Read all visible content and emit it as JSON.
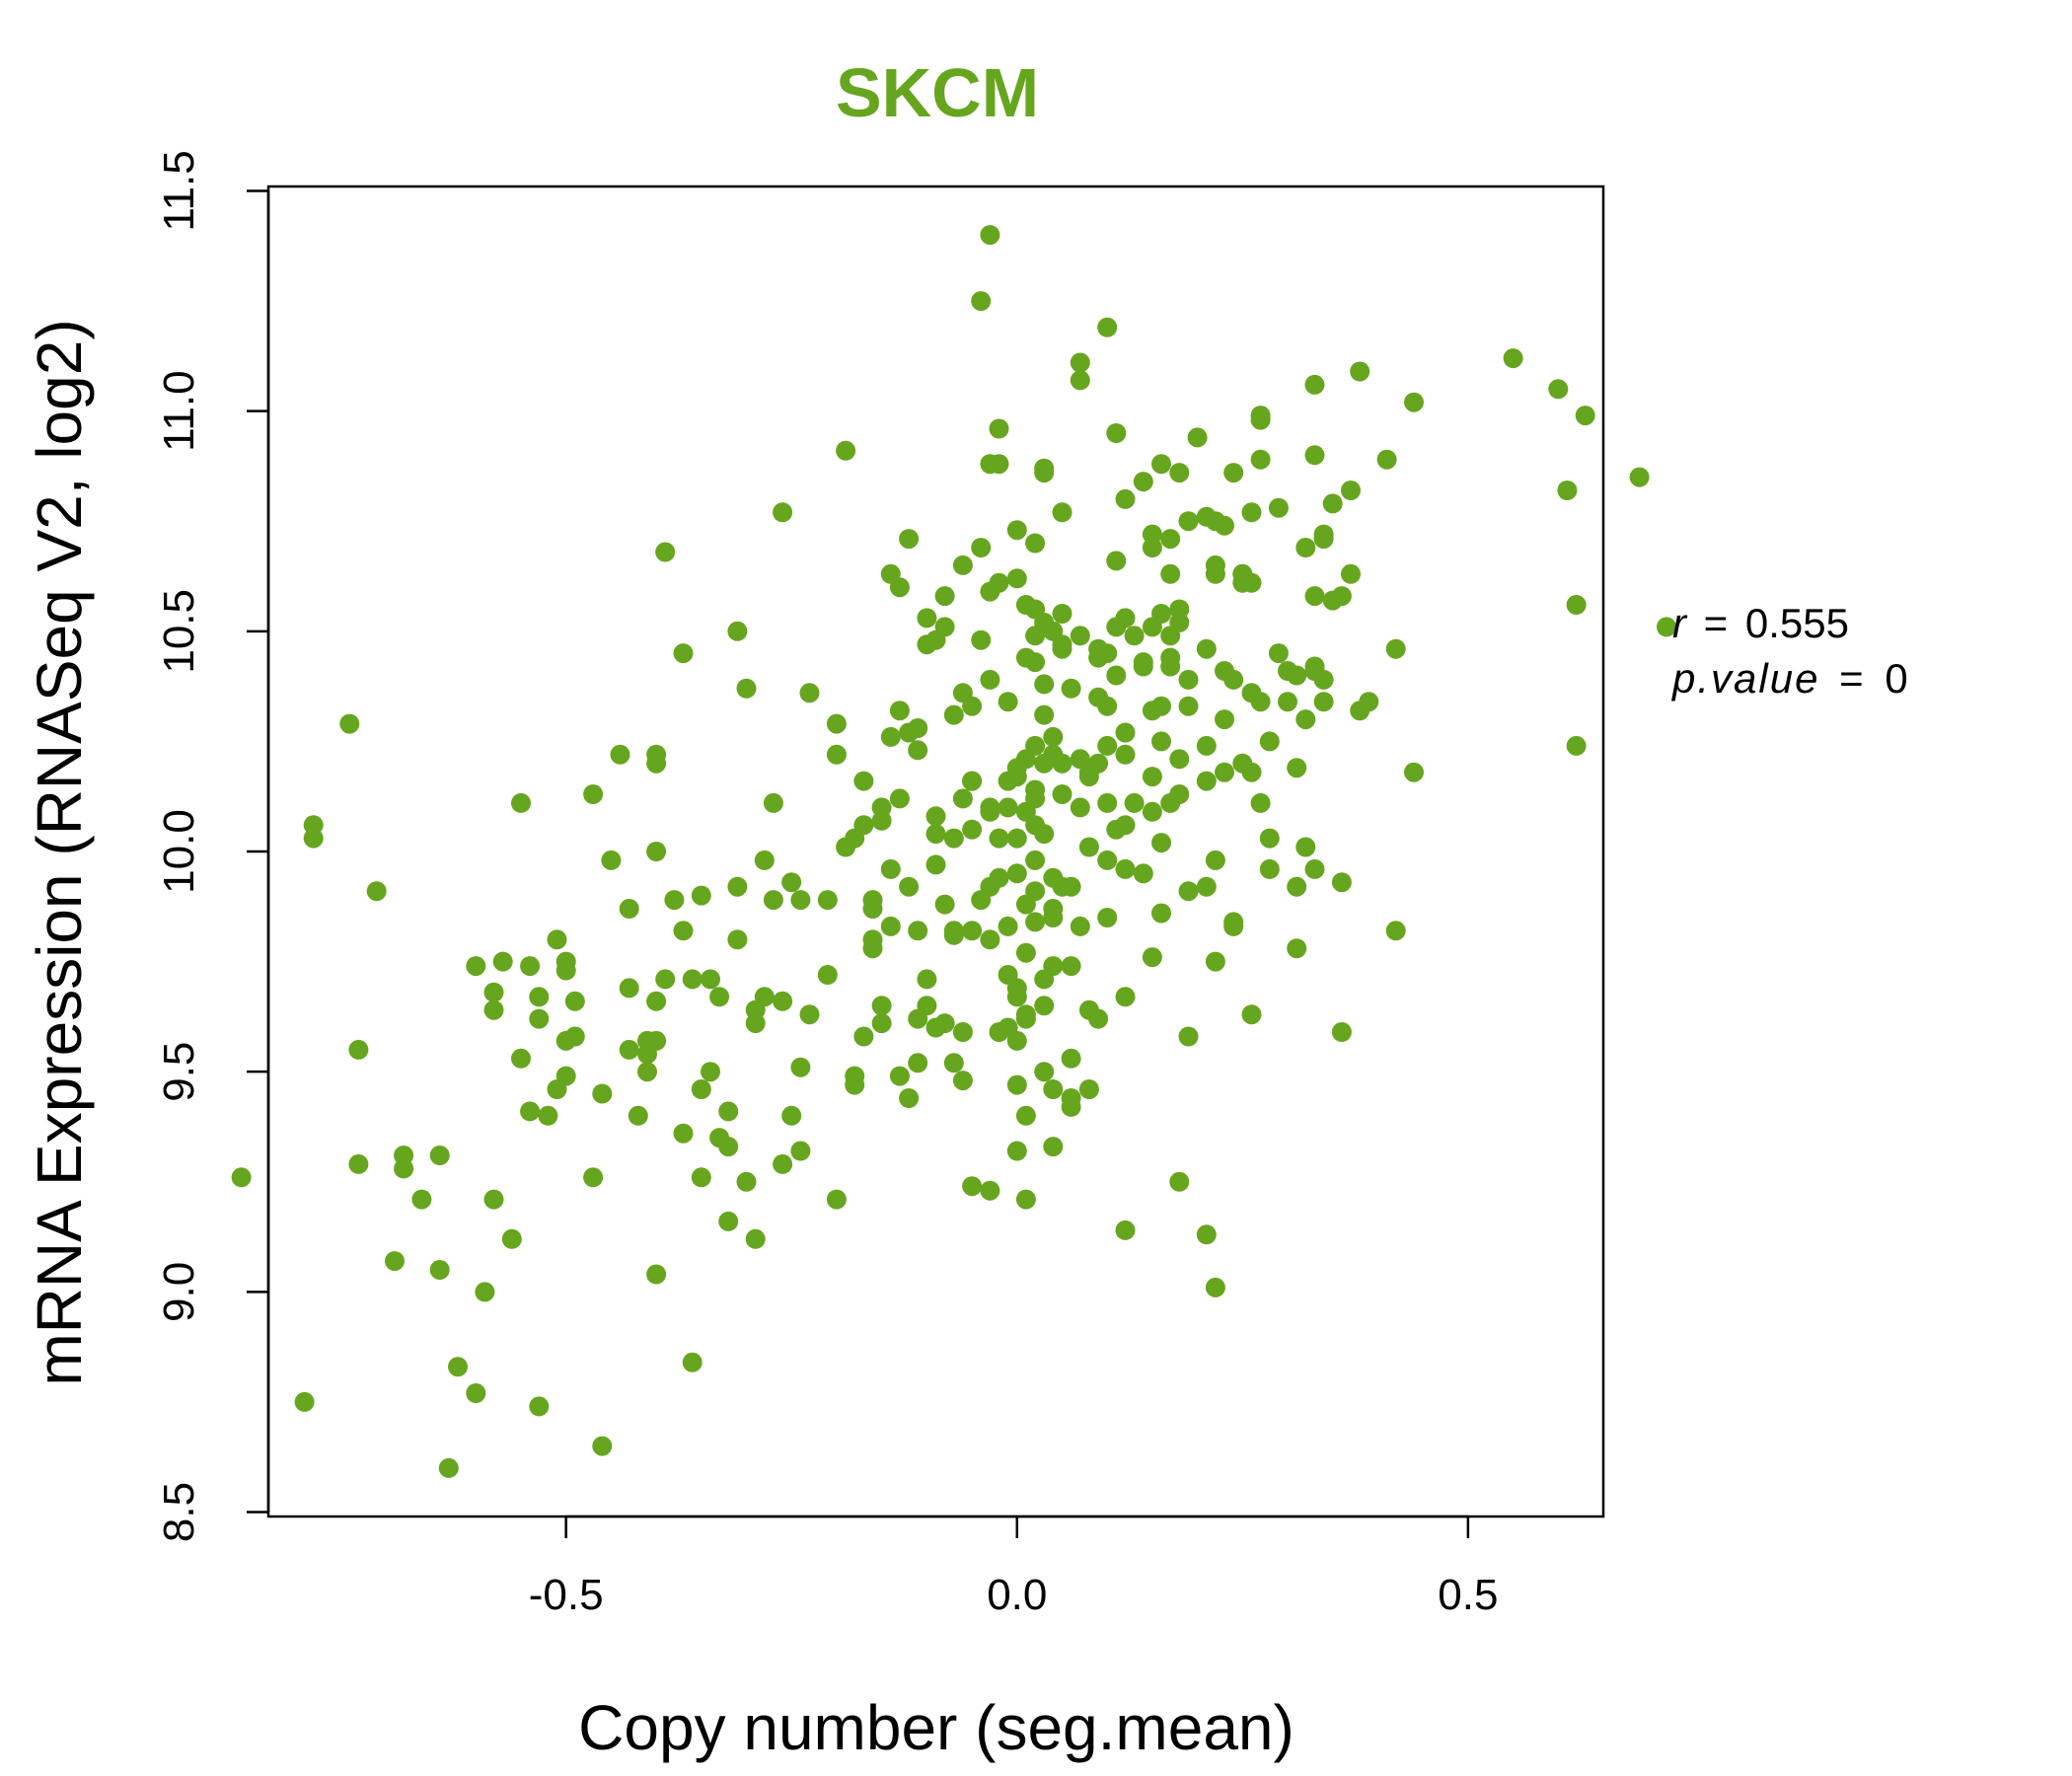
{
  "chart_data": {
    "type": "scatter",
    "title": "SKCM",
    "xlabel": "Copy number (seg.mean)",
    "ylabel": "mRNA Expression (RNASeq V2, log2)",
    "xlim": [
      -0.83,
      0.65
    ],
    "ylim": [
      8.49,
      11.51
    ],
    "x_ticks": [
      -0.5,
      0.0,
      0.5
    ],
    "x_tick_labels": [
      "-0.5",
      "0.0",
      "0.5"
    ],
    "y_ticks": [
      8.5,
      9.0,
      9.5,
      10.0,
      10.5,
      11.0,
      11.5
    ],
    "y_tick_labels": [
      "8.5",
      "9.0",
      "9.5",
      "10.0",
      "10.5",
      "11.0",
      "11.5"
    ],
    "grid": false,
    "colors": {
      "points": "#66A61E",
      "title": "#66A61E",
      "axis": "#000000"
    },
    "stats": {
      "r_label": "r",
      "r_value": "0.555",
      "p_label": "p.value",
      "p_value": "0"
    },
    "points": [
      [
        -0.86,
        9.26
      ],
      [
        -0.79,
        8.75
      ],
      [
        -0.78,
        10.06
      ],
      [
        -0.78,
        10.03
      ],
      [
        -0.74,
        10.29
      ],
      [
        -0.73,
        9.55
      ],
      [
        -0.73,
        9.29
      ],
      [
        -0.71,
        9.91
      ],
      [
        -0.69,
        9.07
      ],
      [
        -0.68,
        9.31
      ],
      [
        -0.68,
        9.28
      ],
      [
        -0.66,
        9.21
      ],
      [
        -0.64,
        9.31
      ],
      [
        -0.64,
        9.05
      ],
      [
        -0.63,
        8.6
      ],
      [
        -0.62,
        8.83
      ],
      [
        -0.6,
        8.77
      ],
      [
        -0.6,
        9.74
      ],
      [
        -0.59,
        9.0
      ],
      [
        -0.58,
        9.68
      ],
      [
        -0.58,
        9.64
      ],
      [
        -0.58,
        9.21
      ],
      [
        -0.57,
        9.75
      ],
      [
        -0.56,
        9.12
      ],
      [
        -0.55,
        10.11
      ],
      [
        -0.55,
        9.53
      ],
      [
        -0.54,
        9.41
      ],
      [
        -0.54,
        9.74
      ],
      [
        -0.53,
        9.62
      ],
      [
        -0.53,
        9.67
      ],
      [
        -0.53,
        8.74
      ],
      [
        -0.52,
        9.4
      ],
      [
        -0.51,
        9.8
      ],
      [
        -0.51,
        9.46
      ],
      [
        -0.5,
        9.75
      ],
      [
        -0.5,
        9.73
      ],
      [
        -0.5,
        9.57
      ],
      [
        -0.5,
        9.49
      ],
      [
        -0.49,
        9.58
      ],
      [
        -0.49,
        9.66
      ],
      [
        -0.47,
        10.13
      ],
      [
        -0.47,
        9.26
      ],
      [
        -0.46,
        8.65
      ],
      [
        -0.46,
        9.45
      ],
      [
        -0.45,
        9.98
      ],
      [
        -0.44,
        10.22
      ],
      [
        -0.43,
        9.69
      ],
      [
        -0.43,
        9.87
      ],
      [
        -0.43,
        9.55
      ],
      [
        -0.42,
        9.4
      ],
      [
        -0.41,
        9.54
      ],
      [
        -0.41,
        9.57
      ],
      [
        -0.41,
        9.5
      ],
      [
        -0.4,
        9.66
      ],
      [
        -0.4,
        9.57
      ],
      [
        -0.4,
        10.2
      ],
      [
        -0.4,
        10.22
      ],
      [
        -0.4,
        9.04
      ],
      [
        -0.4,
        10.0
      ],
      [
        -0.39,
        10.68
      ],
      [
        -0.39,
        9.71
      ],
      [
        -0.38,
        9.89
      ],
      [
        -0.37,
        9.36
      ],
      [
        -0.37,
        9.82
      ],
      [
        -0.37,
        10.45
      ],
      [
        -0.36,
        9.71
      ],
      [
        -0.36,
        8.84
      ],
      [
        -0.35,
        9.26
      ],
      [
        -0.35,
        9.46
      ],
      [
        -0.35,
        9.9
      ],
      [
        -0.34,
        9.5
      ],
      [
        -0.34,
        9.71
      ],
      [
        -0.33,
        9.35
      ],
      [
        -0.33,
        9.67
      ],
      [
        -0.32,
        9.33
      ],
      [
        -0.32,
        9.16
      ],
      [
        -0.32,
        9.41
      ],
      [
        -0.31,
        9.8
      ],
      [
        -0.31,
        9.92
      ],
      [
        -0.31,
        10.5
      ],
      [
        -0.3,
        9.25
      ],
      [
        -0.3,
        10.37
      ],
      [
        -0.29,
        9.64
      ],
      [
        -0.29,
        9.61
      ],
      [
        -0.29,
        9.12
      ],
      [
        -0.28,
        9.67
      ],
      [
        -0.28,
        9.98
      ],
      [
        -0.27,
        9.89
      ],
      [
        -0.27,
        10.11
      ],
      [
        -0.26,
        9.29
      ],
      [
        -0.26,
        9.66
      ],
      [
        -0.26,
        10.77
      ],
      [
        -0.25,
        9.93
      ],
      [
        -0.25,
        9.4
      ],
      [
        -0.24,
        9.89
      ],
      [
        -0.24,
        9.32
      ],
      [
        -0.24,
        9.51
      ],
      [
        -0.23,
        9.63
      ],
      [
        -0.23,
        10.36
      ],
      [
        -0.21,
        9.89
      ],
      [
        -0.21,
        9.72
      ],
      [
        -0.2,
        9.21
      ],
      [
        -0.2,
        10.29
      ],
      [
        -0.2,
        10.22
      ],
      [
        -0.19,
        10.01
      ],
      [
        -0.19,
        10.91
      ],
      [
        -0.18,
        10.03
      ],
      [
        -0.18,
        9.49
      ],
      [
        -0.18,
        9.47
      ],
      [
        -0.17,
        10.06
      ],
      [
        -0.17,
        10.16
      ],
      [
        -0.17,
        9.58
      ],
      [
        -0.16,
        9.8
      ],
      [
        -0.16,
        9.78
      ],
      [
        -0.16,
        9.89
      ],
      [
        -0.16,
        9.87
      ],
      [
        -0.15,
        10.1
      ],
      [
        -0.15,
        10.07
      ],
      [
        -0.15,
        9.65
      ],
      [
        -0.15,
        9.61
      ],
      [
        -0.14,
        9.83
      ],
      [
        -0.14,
        9.96
      ],
      [
        -0.14,
        10.63
      ],
      [
        -0.14,
        10.26
      ],
      [
        -0.13,
        10.12
      ],
      [
        -0.13,
        10.6
      ],
      [
        -0.13,
        9.49
      ],
      [
        -0.13,
        10.32
      ],
      [
        -0.12,
        10.71
      ],
      [
        -0.12,
        10.27
      ],
      [
        -0.12,
        9.92
      ],
      [
        -0.12,
        9.44
      ],
      [
        -0.11,
        9.62
      ],
      [
        -0.11,
        10.28
      ],
      [
        -0.11,
        9.82
      ],
      [
        -0.11,
        10.23
      ],
      [
        -0.11,
        9.52
      ],
      [
        -0.1,
        10.47
      ],
      [
        -0.1,
        9.65
      ],
      [
        -0.1,
        9.71
      ],
      [
        -0.1,
        10.53
      ],
      [
        -0.09,
        10.04
      ],
      [
        -0.09,
        10.08
      ],
      [
        -0.09,
        9.97
      ],
      [
        -0.09,
        10.48
      ],
      [
        -0.09,
        9.6
      ],
      [
        -0.08,
        10.51
      ],
      [
        -0.08,
        9.88
      ],
      [
        -0.08,
        10.58
      ],
      [
        -0.08,
        9.61
      ],
      [
        -0.07,
        9.81
      ],
      [
        -0.07,
        9.52
      ],
      [
        -0.07,
        9.82
      ],
      [
        -0.07,
        10.03
      ],
      [
        -0.07,
        10.31
      ],
      [
        -0.06,
        10.12
      ],
      [
        -0.06,
        10.65
      ],
      [
        -0.06,
        9.59
      ],
      [
        -0.06,
        10.36
      ],
      [
        -0.06,
        9.48
      ],
      [
        -0.05,
        9.82
      ],
      [
        -0.05,
        10.16
      ],
      [
        -0.05,
        9.24
      ],
      [
        -0.05,
        10.16
      ],
      [
        -0.05,
        10.05
      ],
      [
        -0.05,
        10.33
      ],
      [
        -0.04,
        11.25
      ],
      [
        -0.04,
        10.48
      ],
      [
        -0.04,
        9.89
      ],
      [
        -0.04,
        10.69
      ],
      [
        -0.03,
        9.8
      ],
      [
        -0.03,
        10.09
      ],
      [
        -0.03,
        11.4
      ],
      [
        -0.03,
        9.23
      ],
      [
        -0.03,
        10.88
      ],
      [
        -0.03,
        10.1
      ],
      [
        -0.03,
        9.92
      ],
      [
        -0.03,
        10.59
      ],
      [
        -0.03,
        10.39
      ],
      [
        -0.02,
        9.59
      ],
      [
        -0.02,
        10.61
      ],
      [
        -0.02,
        10.88
      ],
      [
        -0.02,
        9.94
      ],
      [
        -0.02,
        10.96
      ],
      [
        -0.02,
        10.03
      ],
      [
        -0.01,
        9.83
      ],
      [
        -0.01,
        10.1
      ],
      [
        -0.01,
        9.72
      ],
      [
        -0.01,
        10.34
      ],
      [
        -0.01,
        10.16
      ],
      [
        -0.01,
        9.6
      ],
      [
        0.0,
        9.67
      ],
      [
        0.0,
        9.95
      ],
      [
        0.0,
        10.17
      ],
      [
        0.0,
        9.57
      ],
      [
        0.0,
        10.19
      ],
      [
        0.0,
        9.32
      ],
      [
        0.0,
        10.62
      ],
      [
        0.0,
        10.03
      ],
      [
        0.0,
        9.47
      ],
      [
        0.0,
        9.69
      ],
      [
        0.0,
        10.73
      ],
      [
        0.01,
        9.62
      ],
      [
        0.01,
        10.44
      ],
      [
        0.01,
        9.77
      ],
      [
        0.01,
        9.88
      ],
      [
        0.01,
        9.21
      ],
      [
        0.01,
        10.09
      ],
      [
        0.01,
        9.63
      ],
      [
        0.01,
        9.4
      ],
      [
        0.01,
        10.21
      ],
      [
        0.01,
        10.56
      ],
      [
        0.02,
        9.84
      ],
      [
        0.02,
        10.55
      ],
      [
        0.02,
        10.24
      ],
      [
        0.02,
        10.49
      ],
      [
        0.02,
        9.91
      ],
      [
        0.02,
        10.12
      ],
      [
        0.02,
        10.43
      ],
      [
        0.02,
        10.14
      ],
      [
        0.02,
        9.98
      ],
      [
        0.02,
        10.7
      ],
      [
        0.02,
        10.06
      ],
      [
        0.03,
        10.51
      ],
      [
        0.03,
        9.5
      ],
      [
        0.03,
        10.31
      ],
      [
        0.03,
        9.65
      ],
      [
        0.03,
        10.04
      ],
      [
        0.03,
        10.2
      ],
      [
        0.03,
        10.87
      ],
      [
        0.03,
        10.38
      ],
      [
        0.03,
        10.52
      ],
      [
        0.03,
        9.71
      ],
      [
        0.03,
        10.86
      ],
      [
        0.04,
        9.33
      ],
      [
        0.04,
        10.22
      ],
      [
        0.04,
        9.46
      ],
      [
        0.04,
        9.85
      ],
      [
        0.04,
        9.87
      ],
      [
        0.04,
        9.94
      ],
      [
        0.04,
        9.74
      ],
      [
        0.04,
        10.26
      ],
      [
        0.04,
        10.5
      ],
      [
        0.05,
        10.77
      ],
      [
        0.05,
        10.54
      ],
      [
        0.05,
        10.47
      ],
      [
        0.05,
        9.92
      ],
      [
        0.05,
        10.13
      ],
      [
        0.05,
        10.2
      ],
      [
        0.05,
        10.46
      ],
      [
        0.06,
        9.42
      ],
      [
        0.06,
        10.37
      ],
      [
        0.06,
        9.74
      ],
      [
        0.06,
        9.44
      ],
      [
        0.06,
        9.53
      ],
      [
        0.06,
        9.92
      ],
      [
        0.07,
        9.83
      ],
      [
        0.07,
        10.1
      ],
      [
        0.07,
        10.49
      ],
      [
        0.07,
        10.21
      ],
      [
        0.07,
        11.11
      ],
      [
        0.07,
        11.07
      ],
      [
        0.08,
        10.18
      ],
      [
        0.08,
        10.17
      ],
      [
        0.08,
        10.01
      ],
      [
        0.08,
        9.64
      ],
      [
        0.08,
        9.46
      ],
      [
        0.09,
        10.46
      ],
      [
        0.09,
        10.2
      ],
      [
        0.09,
        10.35
      ],
      [
        0.09,
        10.44
      ],
      [
        0.09,
        9.62
      ],
      [
        0.1,
        9.85
      ],
      [
        0.1,
        10.11
      ],
      [
        0.1,
        11.19
      ],
      [
        0.1,
        10.33
      ],
      [
        0.1,
        10.24
      ],
      [
        0.1,
        10.45
      ],
      [
        0.1,
        9.98
      ],
      [
        0.11,
        10.51
      ],
      [
        0.11,
        10.05
      ],
      [
        0.11,
        10.4
      ],
      [
        0.11,
        10.95
      ],
      [
        0.11,
        10.66
      ],
      [
        0.12,
        9.67
      ],
      [
        0.12,
        9.96
      ],
      [
        0.12,
        10.27
      ],
      [
        0.12,
        10.22
      ],
      [
        0.12,
        10.8
      ],
      [
        0.12,
        10.53
      ],
      [
        0.12,
        10.06
      ],
      [
        0.12,
        9.14
      ],
      [
        0.13,
        10.11
      ],
      [
        0.13,
        10.49
      ],
      [
        0.14,
        10.43
      ],
      [
        0.14,
        10.84
      ],
      [
        0.14,
        10.42
      ],
      [
        0.14,
        9.95
      ],
      [
        0.15,
        10.17
      ],
      [
        0.15,
        10.72
      ],
      [
        0.15,
        9.76
      ],
      [
        0.15,
        10.32
      ],
      [
        0.15,
        10.51
      ],
      [
        0.15,
        10.09
      ],
      [
        0.15,
        10.69
      ],
      [
        0.16,
        10.25
      ],
      [
        0.16,
        10.54
      ],
      [
        0.16,
        10.02
      ],
      [
        0.16,
        10.88
      ],
      [
        0.16,
        10.33
      ],
      [
        0.16,
        9.86
      ],
      [
        0.17,
        10.44
      ],
      [
        0.17,
        10.71
      ],
      [
        0.17,
        10.11
      ],
      [
        0.17,
        10.42
      ],
      [
        0.17,
        10.63
      ],
      [
        0.17,
        10.49
      ],
      [
        0.18,
        10.52
      ],
      [
        0.18,
        10.13
      ],
      [
        0.18,
        10.86
      ],
      [
        0.18,
        10.21
      ],
      [
        0.18,
        10.55
      ],
      [
        0.18,
        9.25
      ],
      [
        0.19,
        10.75
      ],
      [
        0.19,
        9.91
      ],
      [
        0.19,
        10.39
      ],
      [
        0.19,
        10.33
      ],
      [
        0.19,
        9.58
      ],
      [
        0.2,
        10.94
      ],
      [
        0.21,
        10.46
      ],
      [
        0.21,
        10.24
      ],
      [
        0.21,
        9.92
      ],
      [
        0.21,
        10.16
      ],
      [
        0.21,
        9.13
      ],
      [
        0.21,
        10.76
      ],
      [
        0.22,
        10.65
      ],
      [
        0.22,
        10.63
      ],
      [
        0.22,
        9.75
      ],
      [
        0.22,
        9.01
      ],
      [
        0.22,
        10.75
      ],
      [
        0.22,
        9.98
      ],
      [
        0.23,
        10.41
      ],
      [
        0.23,
        10.18
      ],
      [
        0.23,
        10.3
      ],
      [
        0.23,
        10.74
      ],
      [
        0.24,
        9.84
      ],
      [
        0.24,
        10.39
      ],
      [
        0.24,
        9.83
      ],
      [
        0.24,
        10.86
      ],
      [
        0.25,
        10.63
      ],
      [
        0.25,
        10.2
      ],
      [
        0.25,
        10.63
      ],
      [
        0.25,
        10.61
      ],
      [
        0.26,
        9.63
      ],
      [
        0.26,
        10.61
      ],
      [
        0.26,
        10.36
      ],
      [
        0.26,
        10.18
      ],
      [
        0.26,
        10.77
      ],
      [
        0.27,
        10.11
      ],
      [
        0.27,
        10.89
      ],
      [
        0.27,
        10.99
      ],
      [
        0.27,
        10.98
      ],
      [
        0.27,
        10.34
      ],
      [
        0.28,
        10.25
      ],
      [
        0.28,
        10.03
      ],
      [
        0.28,
        9.96
      ],
      [
        0.29,
        10.45
      ],
      [
        0.29,
        10.78
      ],
      [
        0.3,
        10.41
      ],
      [
        0.3,
        10.34
      ],
      [
        0.31,
        9.92
      ],
      [
        0.31,
        9.78
      ],
      [
        0.31,
        10.4
      ],
      [
        0.31,
        10.19
      ],
      [
        0.32,
        10.01
      ],
      [
        0.32,
        10.3
      ],
      [
        0.32,
        10.69
      ],
      [
        0.33,
        10.9
      ],
      [
        0.33,
        10.42
      ],
      [
        0.33,
        10.41
      ],
      [
        0.33,
        9.96
      ],
      [
        0.33,
        11.06
      ],
      [
        0.33,
        10.58
      ],
      [
        0.34,
        10.72
      ],
      [
        0.34,
        10.39
      ],
      [
        0.34,
        10.34
      ],
      [
        0.34,
        10.71
      ],
      [
        0.35,
        10.79
      ],
      [
        0.35,
        10.57
      ],
      [
        0.36,
        9.93
      ],
      [
        0.36,
        9.59
      ],
      [
        0.36,
        10.58
      ],
      [
        0.37,
        10.63
      ],
      [
        0.37,
        10.82
      ],
      [
        0.38,
        10.32
      ],
      [
        0.38,
        11.09
      ],
      [
        0.39,
        10.34
      ],
      [
        0.41,
        10.89
      ],
      [
        0.42,
        10.46
      ],
      [
        0.42,
        9.82
      ],
      [
        0.44,
        11.02
      ],
      [
        0.44,
        10.18
      ],
      [
        0.55,
        11.12
      ],
      [
        0.6,
        11.05
      ],
      [
        0.61,
        10.82
      ],
      [
        0.62,
        10.24
      ],
      [
        0.62,
        10.56
      ],
      [
        0.63,
        10.99
      ],
      [
        0.69,
        10.85
      ],
      [
        0.72,
        10.51
      ]
    ]
  }
}
